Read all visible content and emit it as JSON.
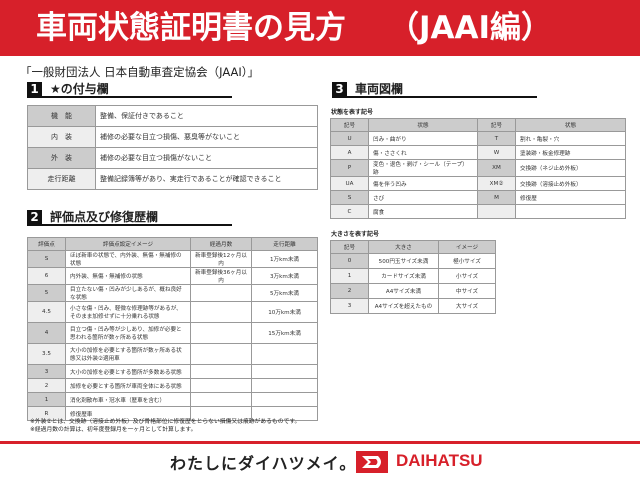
{
  "header": {
    "title": "車両状態証明書の見方",
    "subtitle": "（JAAI編）"
  },
  "organization": "「一般財団法人 日本自動車査定協会（JAAI）」",
  "section1": {
    "num": "1",
    "title": "★の付与欄",
    "rows": [
      {
        "k": "機　能",
        "v": "整備、保証付きであること"
      },
      {
        "k": "内　装",
        "v": "補修の必要な目立つ損傷、悪臭等がないこと"
      },
      {
        "k": "外　装",
        "v": "補修の必要な目立つ損傷がないこと"
      },
      {
        "k": "走行距離",
        "v": "整備記録簿等があり、実走行であることが確認できること"
      }
    ]
  },
  "section2": {
    "num": "2",
    "title": "評価点及び修復歴欄",
    "headers": [
      "評価点",
      "評価点設定イメージ",
      "経過月数",
      "走行距離"
    ],
    "rows": [
      [
        "S",
        "ほぼ新車の状態で、内外装、無傷・無補修の状態",
        "新車登録後12ヶ月以内",
        "1万km未満"
      ],
      [
        "6",
        "内外装、無傷・無補修の状態",
        "新車登録後36ヶ月以内",
        "3万km未満"
      ],
      [
        "5",
        "目立たない傷・凹みが少しあるが、概ね良好な状態",
        "",
        "5万km未満"
      ],
      [
        "4.5",
        "小さな傷・凹み、軽微な修理跡等があるが、そのまま加修せずに十分乗れる状態",
        "",
        "10万km未満"
      ],
      [
        "4",
        "目立つ傷・凹み等が少しあり、加修が必要と思われる箇所が数ヶ所ある状態",
        "",
        "15万km未満"
      ],
      [
        "3.5",
        "大小の加修を必要とする箇所が数ヶ所ある状態又は外装②適用車",
        "",
        ""
      ],
      [
        "3",
        "大小の加修を必要とする箇所が多数ある状態",
        "",
        ""
      ],
      [
        "2",
        "加修を必要とする箇所が車両全体にある状態",
        "",
        ""
      ],
      [
        "1",
        "消化剤散布車・冠水車（歴車を含む）",
        "",
        ""
      ],
      [
        "R",
        "修復歴車",
        "",
        ""
      ]
    ]
  },
  "section3": {
    "num": "3",
    "title": "車両図欄",
    "condition_label": "状態を表す記号",
    "condition_headers": [
      "記号",
      "状態",
      "記号",
      "状態"
    ],
    "condition_rows": [
      [
        "U",
        "凹み・曲がり",
        "T",
        "割れ・亀裂・穴"
      ],
      [
        "A",
        "傷・ささくれ",
        "W",
        "塗装跡・板金修理跡"
      ],
      [
        "P",
        "変色・退色・剥げ・シール（テープ）跡",
        "XM",
        "交換跡（ネジ止め外板）"
      ],
      [
        "UA",
        "傷を伴う凹み",
        "XM②",
        "交換跡（溶接止め外板）"
      ],
      [
        "S",
        "さび",
        "M",
        "修復歴"
      ],
      [
        "C",
        "腐食",
        "",
        ""
      ]
    ],
    "size_label": "大きさを表す記号",
    "size_headers": [
      "記号",
      "大きさ",
      "イメージ"
    ],
    "size_rows": [
      [
        "0",
        "500円玉サイズ未満",
        "極小サイズ"
      ],
      [
        "1",
        "カードサイズ未満",
        "小サイズ"
      ],
      [
        "2",
        "A4サイズ未満",
        "中サイズ"
      ],
      [
        "3",
        "A4サイズを超えたもの",
        "大サイズ"
      ]
    ]
  },
  "notes": [
    "※外装②とは、交換跡（溶接止め外板）及び骨格部位に修復歴をとらない損傷又は痕跡があるものです。",
    "※経過月数の計算は、初年度登録月を一ヶ月として計算します。"
  ],
  "footer": {
    "slogan": "わたしにダイハツメイ。",
    "brand": "DAIHATSU"
  },
  "colors": {
    "accent": "#d7202a"
  }
}
